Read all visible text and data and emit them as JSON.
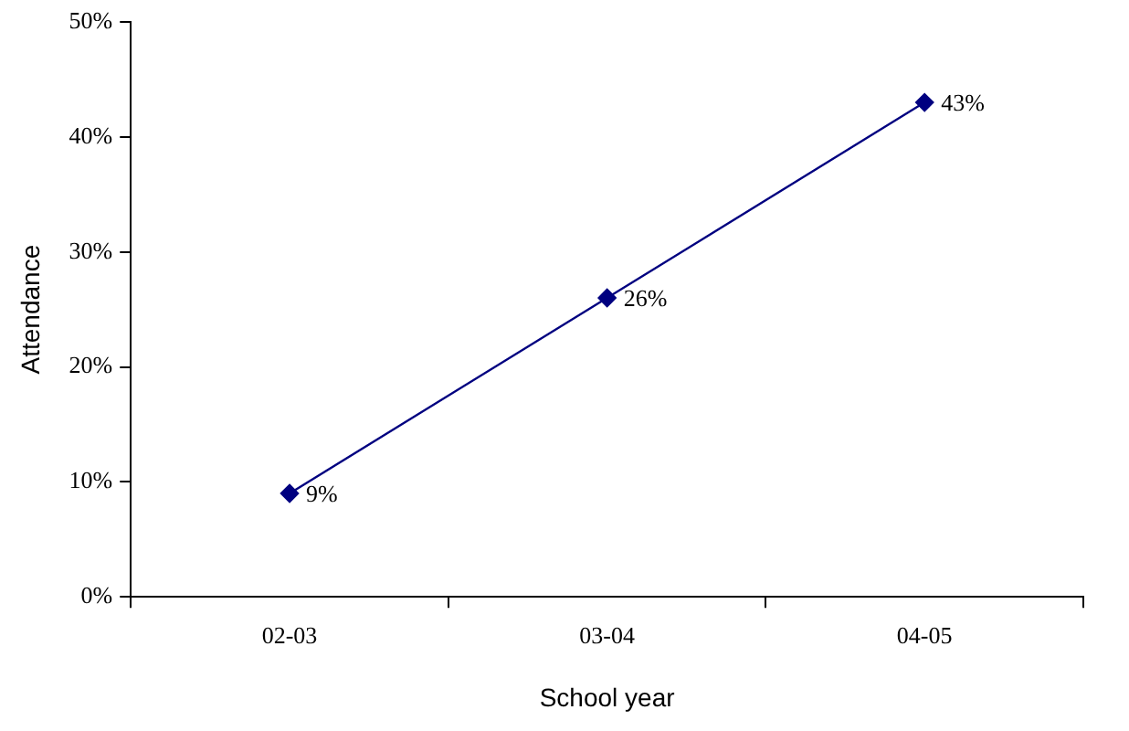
{
  "chart_data": {
    "type": "line",
    "xlabel": "School year",
    "ylabel": "Attendance",
    "categories": [
      "02-03",
      "03-04",
      "04-05"
    ],
    "series": [
      {
        "color": "#000080",
        "values": [
          9,
          26,
          43
        ],
        "value_labels": [
          "9%",
          "26%",
          "43%"
        ]
      }
    ],
    "ylim": [
      0,
      50
    ],
    "yticks": [
      {
        "value": 0,
        "label": "0%"
      },
      {
        "value": 10,
        "label": "10%"
      },
      {
        "value": 20,
        "label": "20%"
      },
      {
        "value": 30,
        "label": "30%"
      },
      {
        "value": 40,
        "label": "40%"
      },
      {
        "value": 50,
        "label": "50%"
      }
    ],
    "grid": false,
    "legend": false,
    "marker": "diamond",
    "line_style": "solid"
  }
}
